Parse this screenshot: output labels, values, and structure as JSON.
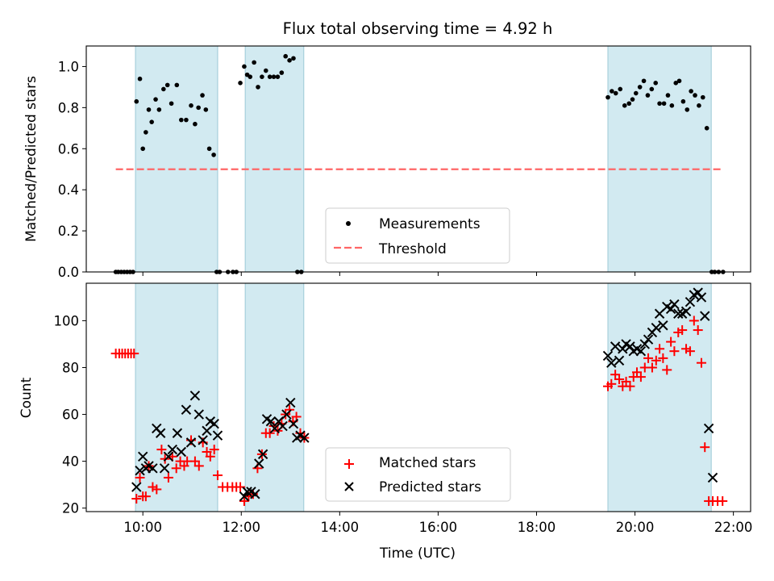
{
  "chart_data": {
    "type": "scatter",
    "title": "Flux total observing time = 4.92 h",
    "xlabel": "Time (UTC)",
    "x_unit": "time of day (UTC), hours as decimal",
    "xlim": [
      8.85,
      22.35
    ],
    "xticks": [
      {
        "x": 10,
        "label": "10:00"
      },
      {
        "x": 12,
        "label": "12:00"
      },
      {
        "x": 14,
        "label": "14:00"
      },
      {
        "x": 16,
        "label": "16:00"
      },
      {
        "x": 18,
        "label": "18:00"
      },
      {
        "x": 20,
        "label": "20:00"
      },
      {
        "x": 22,
        "label": "22:00"
      }
    ],
    "shaded_intervals": [
      [
        9.85,
        11.52
      ],
      [
        12.08,
        13.27
      ],
      [
        19.45,
        21.55
      ]
    ],
    "shade_color": "#add8e6",
    "panels": [
      {
        "id": "top",
        "ylabel": "Matched/Predicted stars",
        "ylim": [
          0,
          1.1
        ],
        "yticks": [
          {
            "y": 0.0,
            "label": "0.0"
          },
          {
            "y": 0.2,
            "label": "0.2"
          },
          {
            "y": 0.4,
            "label": "0.4"
          },
          {
            "y": 0.6,
            "label": "0.6"
          },
          {
            "y": 0.8,
            "label": "0.8"
          },
          {
            "y": 1.0,
            "label": "1.0"
          }
        ],
        "threshold": {
          "name": "Threshold",
          "y": 0.5,
          "x_range": [
            9.45,
            21.8
          ],
          "color": "#ff6666",
          "dash": true
        },
        "series": [
          {
            "name": "Measurements",
            "marker": "dot",
            "color": "#000000",
            "x": [
              9.45,
              9.5,
              9.56,
              9.62,
              9.68,
              9.74,
              9.8,
              9.87,
              9.94,
              10.0,
              10.06,
              10.12,
              10.18,
              10.26,
              10.33,
              10.42,
              10.5,
              10.58,
              10.69,
              10.78,
              10.88,
              10.98,
              11.06,
              11.13,
              11.21,
              11.28,
              11.35,
              11.44,
              11.5,
              11.56,
              11.73,
              11.83,
              11.9,
              11.98,
              12.06,
              12.12,
              12.18,
              12.26,
              12.34,
              12.42,
              12.5,
              12.58,
              12.66,
              12.74,
              12.82,
              12.9,
              12.98,
              13.06,
              13.14,
              13.22,
              19.45,
              19.53,
              19.61,
              19.7,
              19.79,
              19.88,
              19.95,
              20.02,
              20.1,
              20.18,
              20.26,
              20.34,
              20.42,
              20.5,
              20.59,
              20.67,
              20.75,
              20.83,
              20.9,
              20.98,
              21.06,
              21.14,
              21.22,
              21.3,
              21.38,
              21.46,
              21.56,
              21.62,
              21.7,
              21.79
            ],
            "y": [
              0.0,
              0.0,
              0.0,
              0.0,
              0.0,
              0.0,
              0.0,
              0.83,
              0.94,
              0.6,
              0.68,
              0.79,
              0.73,
              0.84,
              0.79,
              0.89,
              0.91,
              0.82,
              0.91,
              0.74,
              0.74,
              0.81,
              0.72,
              0.8,
              0.86,
              0.79,
              0.6,
              0.57,
              0.0,
              0.0,
              0.0,
              0.0,
              0.0,
              0.92,
              1.0,
              0.96,
              0.95,
              1.02,
              0.9,
              0.95,
              0.98,
              0.95,
              0.95,
              0.95,
              0.97,
              1.05,
              1.03,
              1.04,
              0.0,
              0.0,
              0.85,
              0.88,
              0.87,
              0.89,
              0.81,
              0.82,
              0.84,
              0.87,
              0.9,
              0.93,
              0.86,
              0.89,
              0.92,
              0.82,
              0.82,
              0.86,
              0.81,
              0.92,
              0.93,
              0.83,
              0.79,
              0.88,
              0.86,
              0.81,
              0.85,
              0.7,
              0.0,
              0.0,
              0.0,
              0.0
            ]
          }
        ],
        "legend": {
          "position": "lower-center",
          "entries": [
            "Measurements",
            "Threshold"
          ]
        }
      },
      {
        "id": "bottom",
        "ylabel": "Count",
        "ylim": [
          18.5,
          116
        ],
        "yticks": [
          {
            "y": 20,
            "label": "20"
          },
          {
            "y": 40,
            "label": "40"
          },
          {
            "y": 60,
            "label": "60"
          },
          {
            "y": 80,
            "label": "80"
          },
          {
            "y": 100,
            "label": "100"
          }
        ],
        "series": [
          {
            "name": "Matched stars",
            "marker": "plus",
            "color": "#ff0000",
            "x": [
              9.45,
              9.52,
              9.58,
              9.64,
              9.7,
              9.76,
              9.82,
              9.87,
              9.94,
              10.0,
              10.06,
              10.12,
              10.2,
              10.28,
              10.38,
              10.45,
              10.52,
              10.6,
              10.68,
              10.76,
              10.84,
              10.9,
              10.98,
              11.06,
              11.14,
              11.22,
              11.3,
              11.37,
              11.45,
              11.52,
              11.62,
              11.72,
              11.82,
              11.9,
              11.98,
              12.06,
              12.15,
              12.24,
              12.33,
              12.42,
              12.5,
              12.58,
              12.66,
              12.74,
              12.82,
              12.9,
              12.98,
              13.05,
              13.12,
              13.2,
              13.28,
              19.45,
              19.52,
              19.6,
              19.68,
              19.75,
              19.82,
              19.9,
              19.97,
              20.04,
              20.12,
              20.2,
              20.27,
              20.35,
              20.43,
              20.5,
              20.57,
              20.65,
              20.73,
              20.8,
              20.88,
              20.96,
              21.04,
              21.12,
              21.2,
              21.28,
              21.35,
              21.42,
              21.5,
              21.58,
              21.68,
              21.78
            ],
            "y": [
              86,
              86,
              86,
              86,
              86,
              86,
              86,
              24,
              33,
              25,
              25,
              38,
              29,
              28,
              45,
              41,
              33,
              42,
              37,
              40,
              38,
              40,
              49,
              40,
              38,
              48,
              44,
              42,
              45,
              34,
              29,
              29,
              29,
              29,
              29,
              23,
              25,
              26,
              37,
              43,
              52,
              52,
              55,
              53,
              56,
              60,
              62,
              57,
              59,
              52,
              50,
              72,
              73,
              77,
              75,
              72,
              74,
              72,
              76,
              78,
              76,
              80,
              84,
              80,
              83,
              88,
              84,
              79,
              91,
              87,
              95,
              96,
              88,
              87,
              100,
              96,
              82,
              46,
              23,
              23,
              23,
              23
            ]
          },
          {
            "name": "Predicted stars",
            "marker": "x",
            "color": "#000000",
            "x": [
              9.87,
              9.94,
              10.0,
              10.06,
              10.12,
              10.2,
              10.28,
              10.36,
              10.44,
              10.52,
              10.6,
              10.7,
              10.78,
              10.88,
              10.98,
              11.06,
              11.14,
              11.22,
              11.3,
              11.37,
              11.45,
              11.52,
              12.06,
              12.12,
              12.2,
              12.28,
              12.36,
              12.44,
              12.52,
              12.6,
              12.68,
              12.76,
              12.84,
              12.92,
              13.0,
              13.06,
              13.13,
              13.2,
              13.28,
              19.45,
              19.52,
              19.6,
              19.68,
              19.75,
              19.82,
              19.9,
              19.97,
              20.04,
              20.12,
              20.2,
              20.27,
              20.35,
              20.43,
              20.5,
              20.57,
              20.65,
              20.73,
              20.8,
              20.88,
              20.96,
              21.04,
              21.12,
              21.2,
              21.28,
              21.35,
              21.42,
              21.5,
              21.58
            ],
            "y": [
              29,
              36,
              42,
              37,
              38,
              37,
              54,
              52,
              37,
              42,
              45,
              52,
              44,
              62,
              48,
              68,
              60,
              49,
              53,
              57,
              56,
              51,
              25,
              27,
              27,
              26,
              39,
              43,
              58,
              57,
              54,
              57,
              55,
              60,
              65,
              56,
              50,
              51,
              50,
              85,
              82,
              89,
              83,
              88,
              90,
              89,
              87,
              88,
              87,
              90,
              92,
              95,
              97,
              103,
              98,
              106,
              105,
              107,
              103,
              103,
              104,
              108,
              111,
              112,
              110,
              102,
              54,
              33
            ]
          }
        ],
        "legend": {
          "position": "lower-center",
          "entries": [
            "Matched stars",
            "Predicted stars"
          ]
        }
      }
    ]
  }
}
